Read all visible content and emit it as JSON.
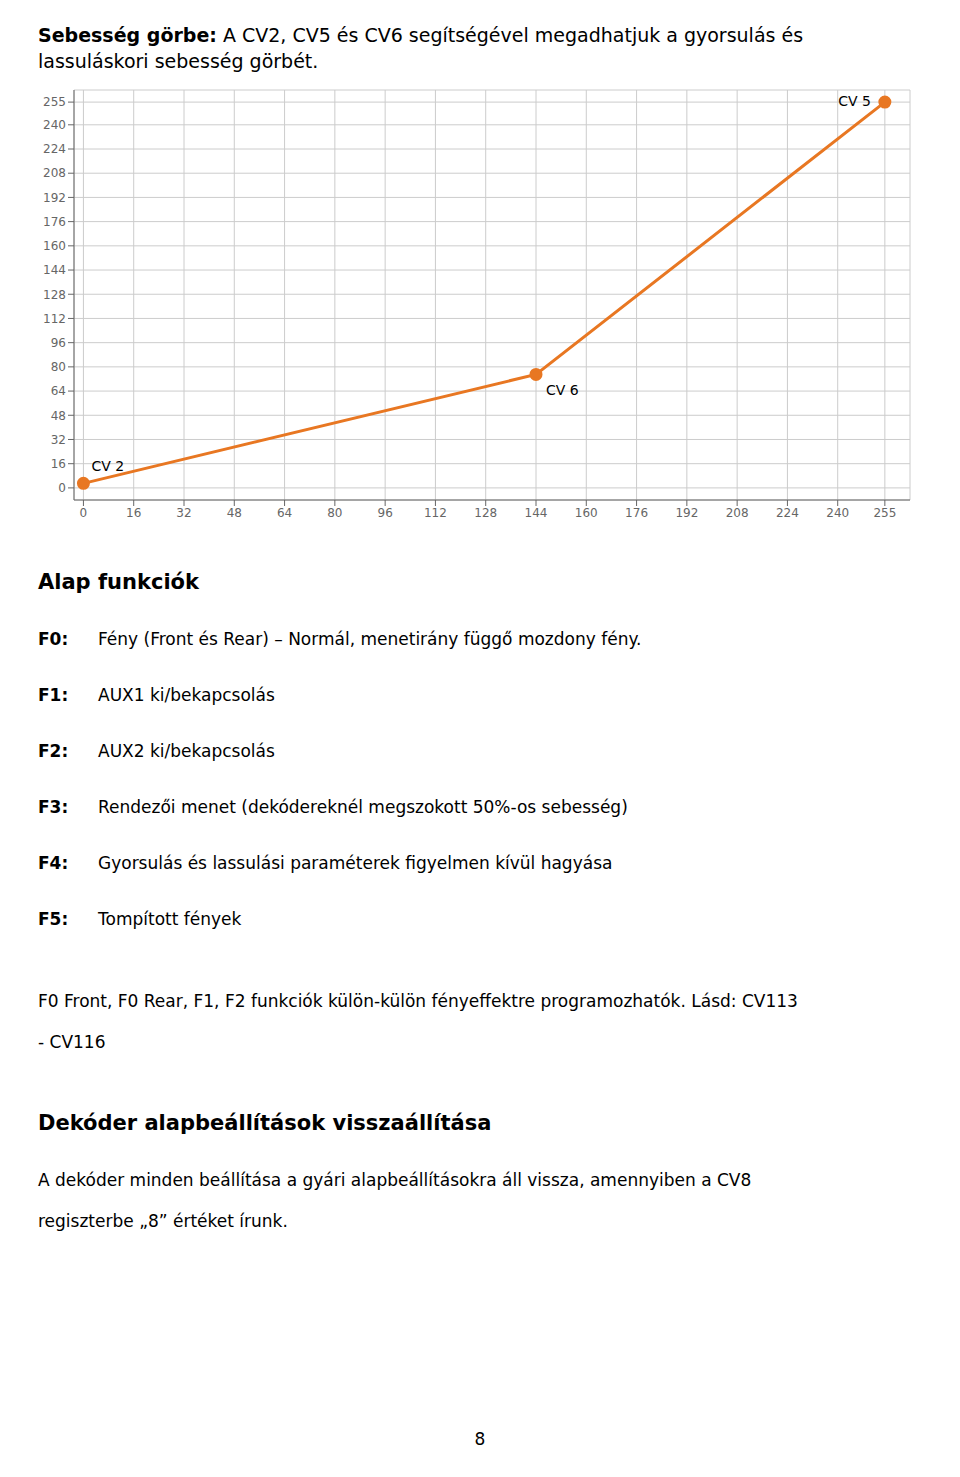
{
  "chart_data": {
    "type": "line",
    "title": "Sebesség görbe:",
    "subtitle": "A CV2, CV5 és CV6 segítségével megadhatjuk a gyorsulás és lassuláskori sebesség görbét.",
    "x": [
      0,
      144,
      255
    ],
    "values": [
      3,
      75,
      255
    ],
    "color": "#E87722",
    "marker": "circle",
    "xlim": [
      -3,
      263
    ],
    "ylim": [
      -8,
      263
    ],
    "xticks": [
      0,
      16,
      32,
      48,
      64,
      80,
      96,
      112,
      128,
      144,
      160,
      176,
      192,
      208,
      224,
      240,
      255
    ],
    "yticks": [
      0,
      16,
      32,
      48,
      64,
      80,
      96,
      112,
      128,
      144,
      160,
      176,
      192,
      208,
      224,
      240,
      255
    ],
    "grid": true,
    "annotations": [
      {
        "text": "CV 2",
        "x": 0,
        "y": 3
      },
      {
        "text": "CV 6",
        "x": 144,
        "y": 75
      },
      {
        "text": "CV 5",
        "x": 255,
        "y": 255
      }
    ]
  },
  "text": [
    {
      "heading": "Alap funkciók"
    },
    {
      "bold": "F0:",
      "text": "Fény (Front és Rear) – Normál, menetirány függő mozdony fény."
    },
    {
      "bold": "F1:",
      "text": "AUX1 ki/bekapcsolás"
    },
    {
      "bold": "F2:",
      "text": "AUX2 ki/bekapcsolás"
    },
    {
      "bold": "F3:",
      "text": "Rendezői menet (dekódereknél megszokott 50%-os sebesség)"
    },
    {
      "bold": "F4:",
      "text": "Gyorsulás és lassulási paraméterek figyelmen kívül hagyása"
    },
    {
      "bold": "F5:",
      "text": "Tompított fények"
    },
    {
      "text": "F0 Front, F0 Rear, F1, F2 funkciók külön-külön fényeffektre programozhatók. Lásd: CV113 - CV116"
    },
    {
      "heading": "Dekóder alapbeállítások visszaállítása"
    },
    {
      "text": "A dekóder minden beállítása a gyári alapbeállításokra áll vissza, amennyiben a CV8 regiszterbe „8” értéket írunk."
    }
  ],
  "page_number": "8"
}
